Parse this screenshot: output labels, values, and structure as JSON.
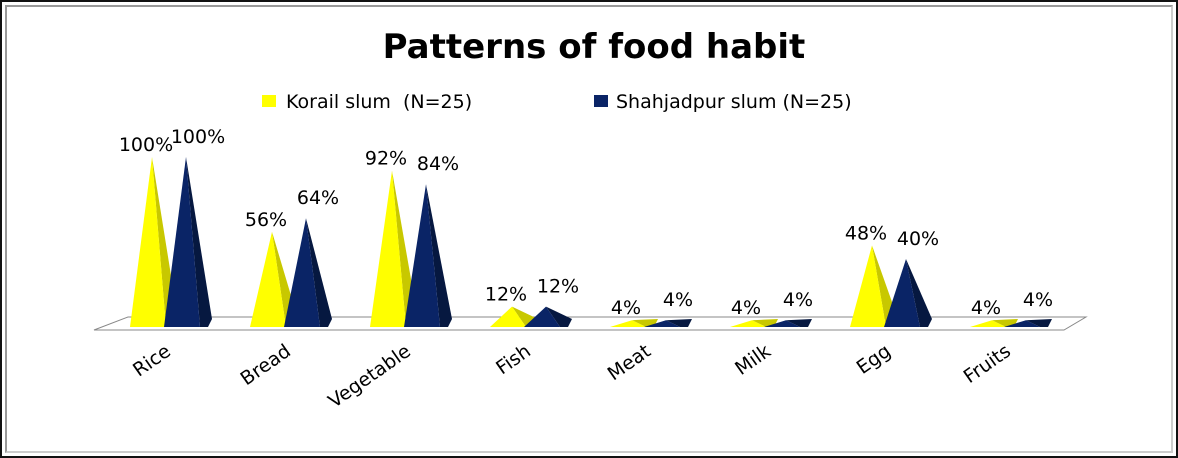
{
  "chart_data": {
    "type": "bar",
    "style": "3d-pyramid",
    "title": "Patterns of food habit",
    "categories": [
      "Rice",
      "Bread",
      "Vegetable",
      "Fish",
      "Meat",
      "Milk",
      "Egg",
      "Fruits"
    ],
    "series": [
      {
        "name": "Korail slum  (N=25)",
        "color": "#ffff00",
        "values": [
          100,
          56,
          92,
          12,
          4,
          4,
          48,
          4
        ],
        "labels": [
          "100%",
          "56%",
          "92%",
          "12%",
          "4%",
          "4%",
          "48%",
          "4%"
        ]
      },
      {
        "name": "Shahjadpur slum (N=25)",
        "color": "#0a2466",
        "values": [
          100,
          64,
          84,
          12,
          4,
          4,
          40,
          4
        ],
        "labels": [
          "100%",
          "64%",
          "84%",
          "12%",
          "4%",
          "4%",
          "40%",
          "4%"
        ]
      }
    ],
    "ylim": [
      0,
      100
    ],
    "grid": false,
    "legend": "top"
  }
}
